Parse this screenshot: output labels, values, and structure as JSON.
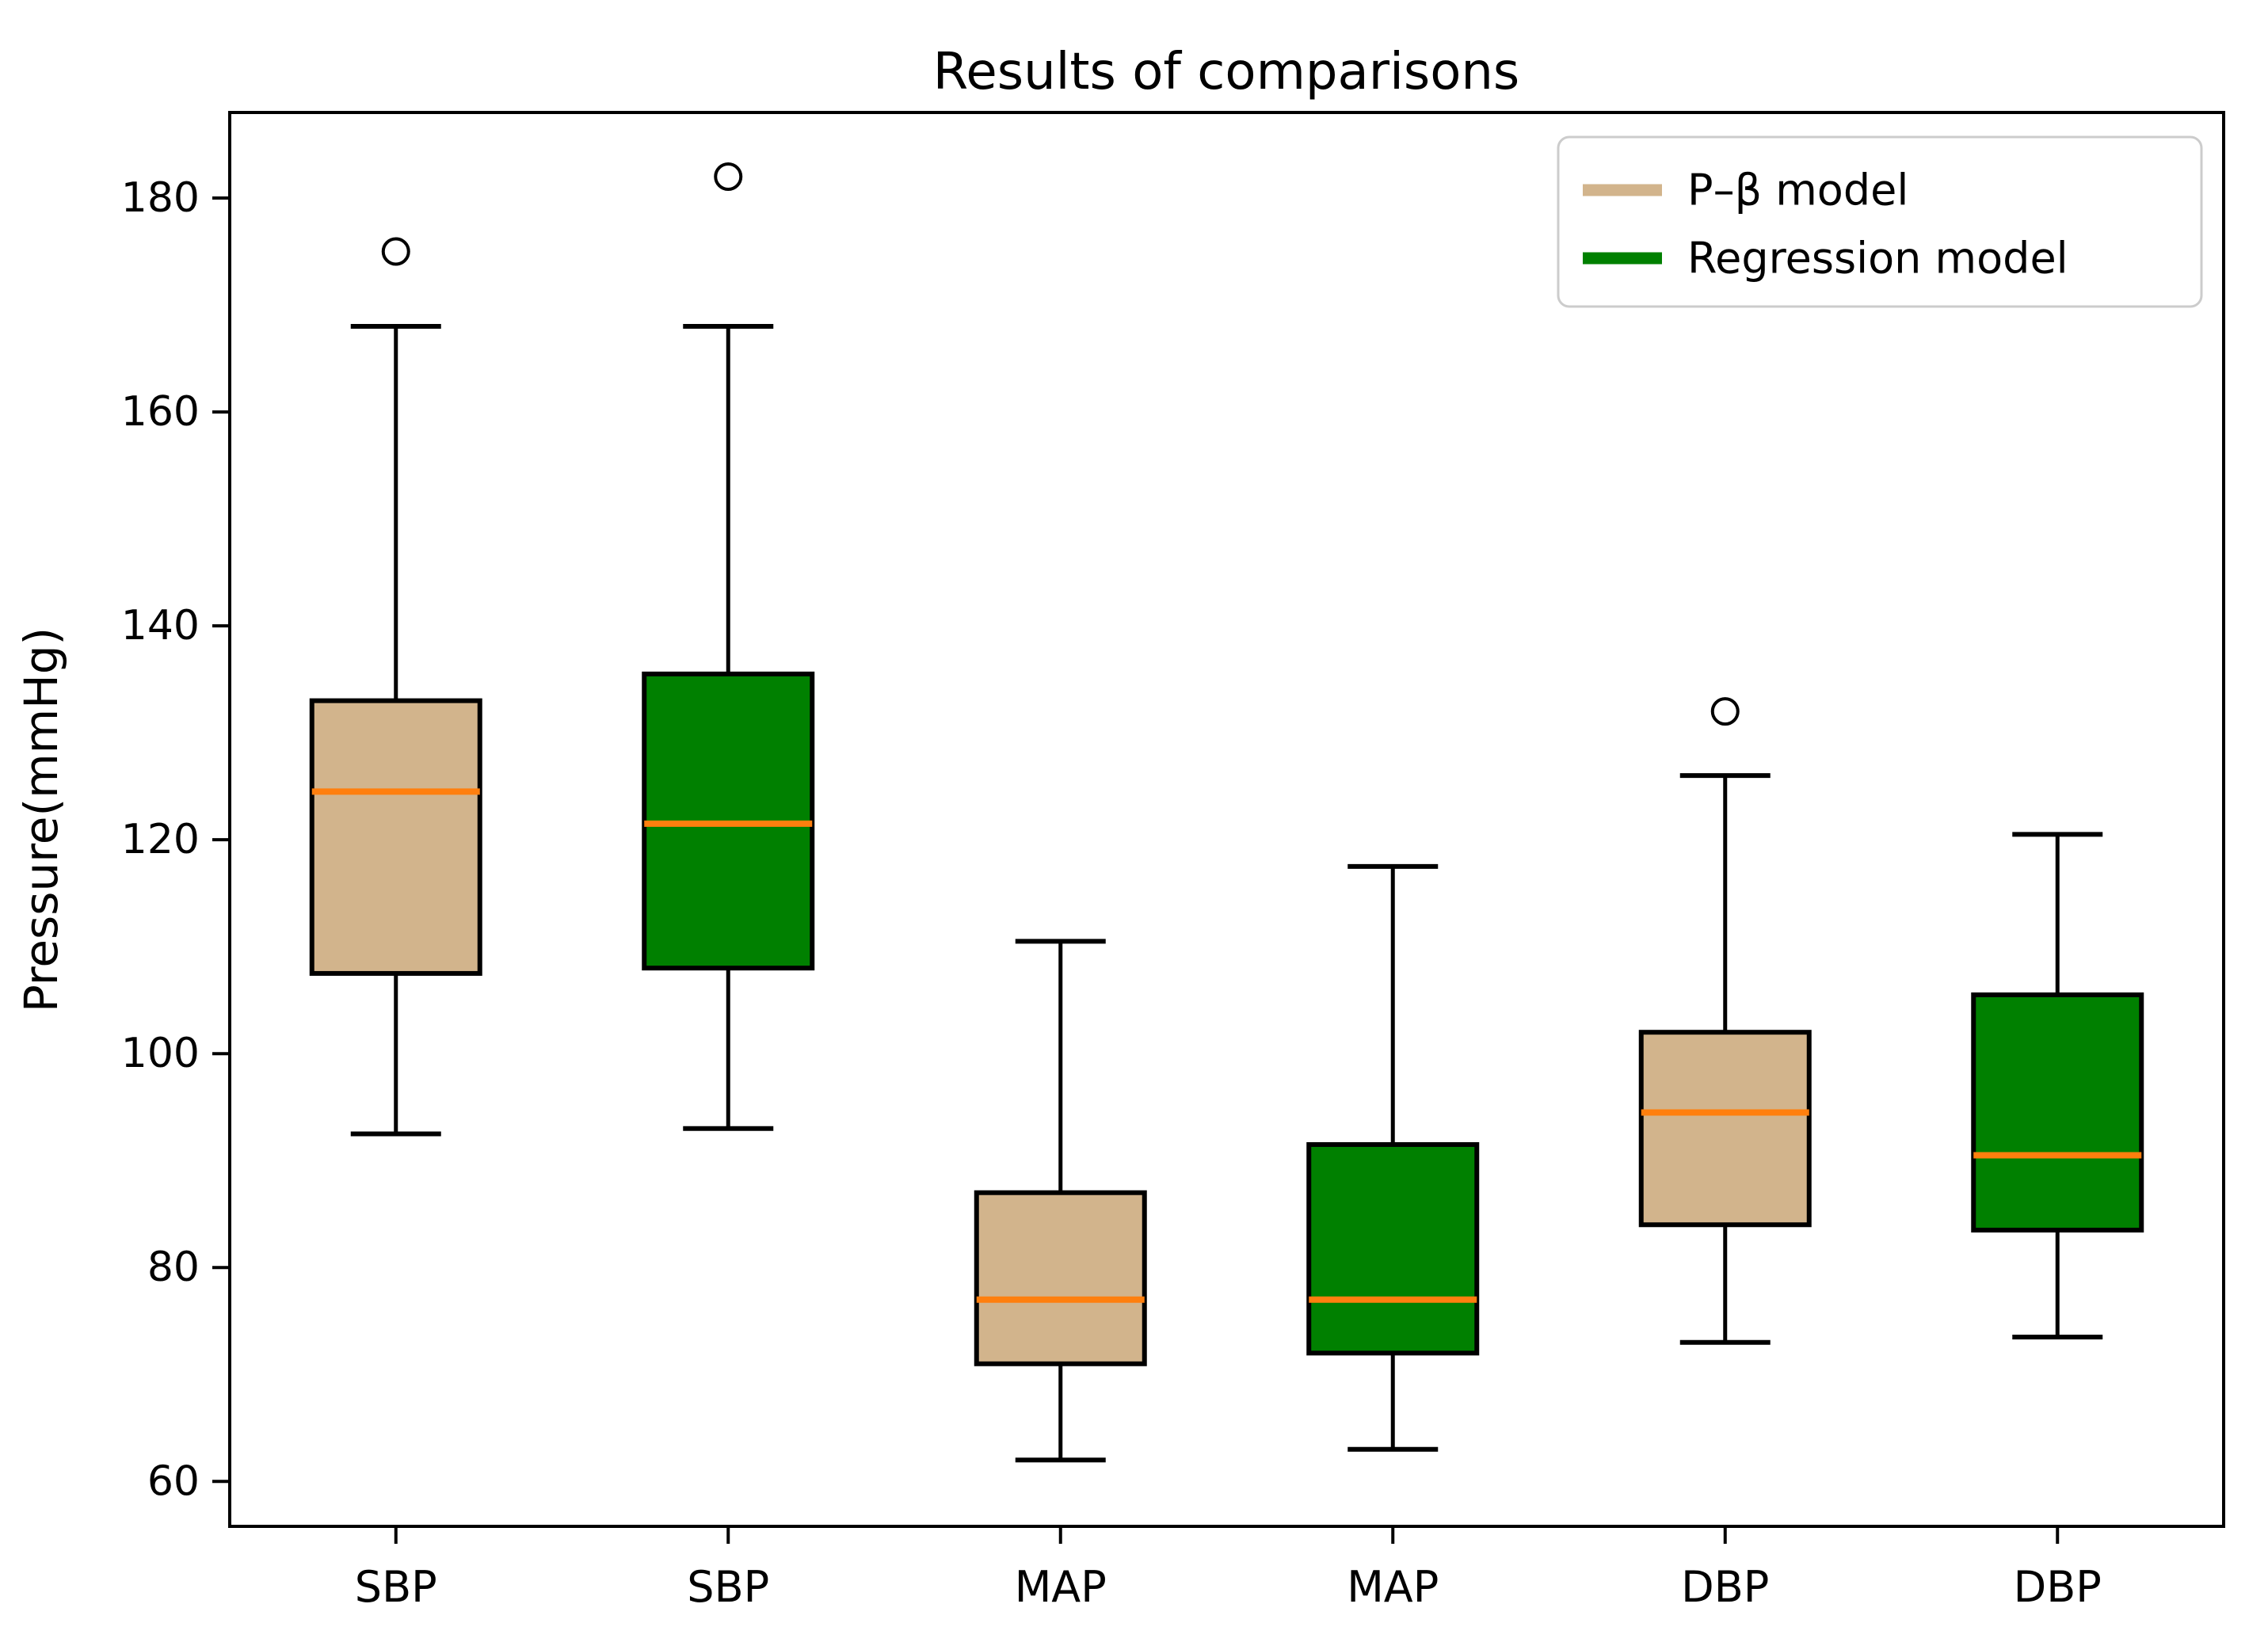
{
  "chart_data": {
    "type": "boxplot",
    "title": "Results of comparisons",
    "ylabel": "Pressure(mmHg)",
    "xlabel": "",
    "categories": [
      "SBP",
      "SBP",
      "MAP",
      "MAP",
      "DBP",
      "DBP"
    ],
    "yticks": [
      60,
      80,
      100,
      120,
      140,
      160,
      180
    ],
    "ylim": [
      55.8,
      188.0
    ],
    "grid": false,
    "median_color": "#FF7F0E",
    "box_edge_color": "#000000",
    "legend": {
      "position": "upper right",
      "items": [
        {
          "label": "P–β model",
          "color": "#D2B48C"
        },
        {
          "label": "Regression model",
          "color": "#008000"
        }
      ]
    },
    "boxes": [
      {
        "label": "SBP",
        "model": "P–β model",
        "color": "#D2B48C",
        "whisker_low": 92.5,
        "q1": 107.5,
        "median": 124.5,
        "q3": 133,
        "whisker_high": 168,
        "outliers": [
          175
        ]
      },
      {
        "label": "SBP",
        "model": "Regression model",
        "color": "#008000",
        "whisker_low": 93,
        "q1": 108,
        "median": 121.5,
        "q3": 135.5,
        "whisker_high": 168,
        "outliers": [
          182
        ]
      },
      {
        "label": "MAP",
        "model": "P–β model",
        "color": "#D2B48C",
        "whisker_low": 62,
        "q1": 71,
        "median": 77,
        "q3": 87,
        "whisker_high": 110.5,
        "outliers": []
      },
      {
        "label": "MAP",
        "model": "Regression model",
        "color": "#008000",
        "whisker_low": 63,
        "q1": 72,
        "median": 77,
        "q3": 91.5,
        "whisker_high": 117.5,
        "outliers": []
      },
      {
        "label": "DBP",
        "model": "P–β model",
        "color": "#D2B48C",
        "whisker_low": 73,
        "q1": 84,
        "median": 94.5,
        "q3": 102,
        "whisker_high": 126,
        "outliers": [
          132
        ]
      },
      {
        "label": "DBP",
        "model": "Regression model",
        "color": "#008000",
        "whisker_low": 73.5,
        "q1": 83.5,
        "median": 90.5,
        "q3": 105.5,
        "whisker_high": 120.5,
        "outliers": []
      }
    ]
  }
}
